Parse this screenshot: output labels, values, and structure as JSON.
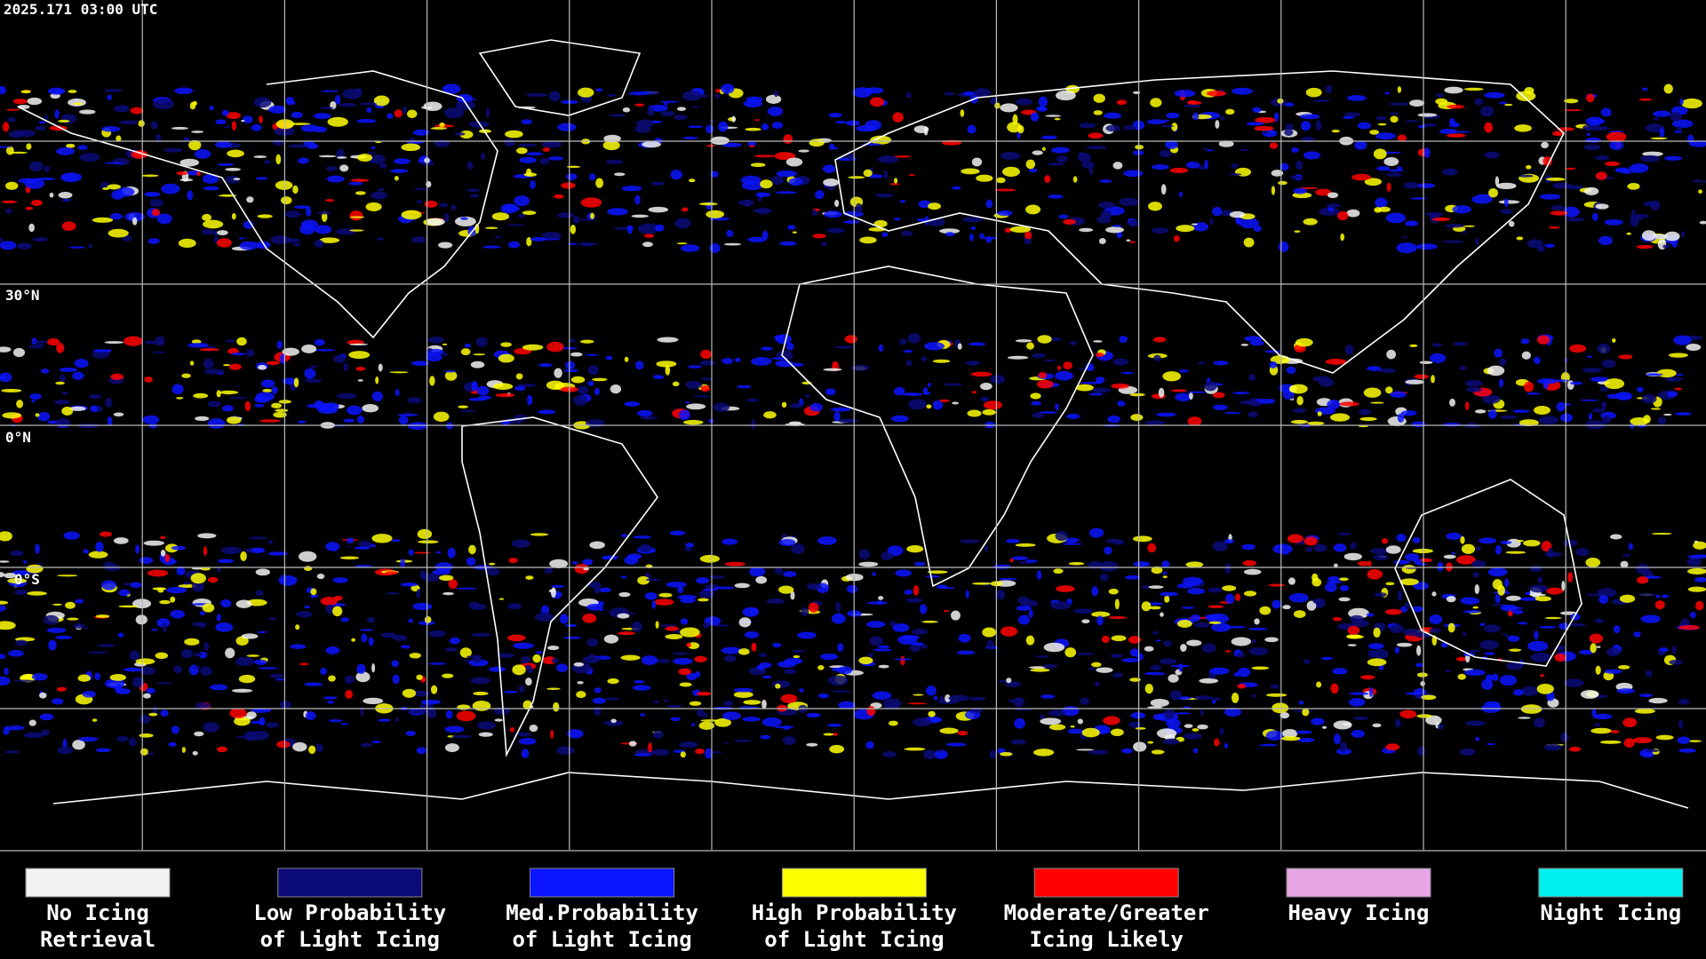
{
  "header": {
    "timestamp": "2025.171 03:00 UTC"
  },
  "lat_labels": [
    "30°N",
    "0°N",
    "0°S"
  ],
  "legend": [
    {
      "lines": [
        "No Icing",
        "Retrieval"
      ],
      "color": "#f2f2f2"
    },
    {
      "lines": [
        "Low Probability",
        "of Light Icing"
      ],
      "color": "#0a0a78"
    },
    {
      "lines": [
        "Med.Probability",
        "of Light Icing"
      ],
      "color": "#0a14ff"
    },
    {
      "lines": [
        "High Probability",
        "of Light Icing"
      ],
      "color": "#ffff00"
    },
    {
      "lines": [
        "Moderate/Greater",
        "Icing Likely"
      ],
      "color": "#ff0000"
    },
    {
      "lines": [
        "Heavy Icing"
      ],
      "color": "#e6a6e6"
    },
    {
      "lines": [
        "Night Icing"
      ],
      "color": "#00f0f0"
    }
  ]
}
